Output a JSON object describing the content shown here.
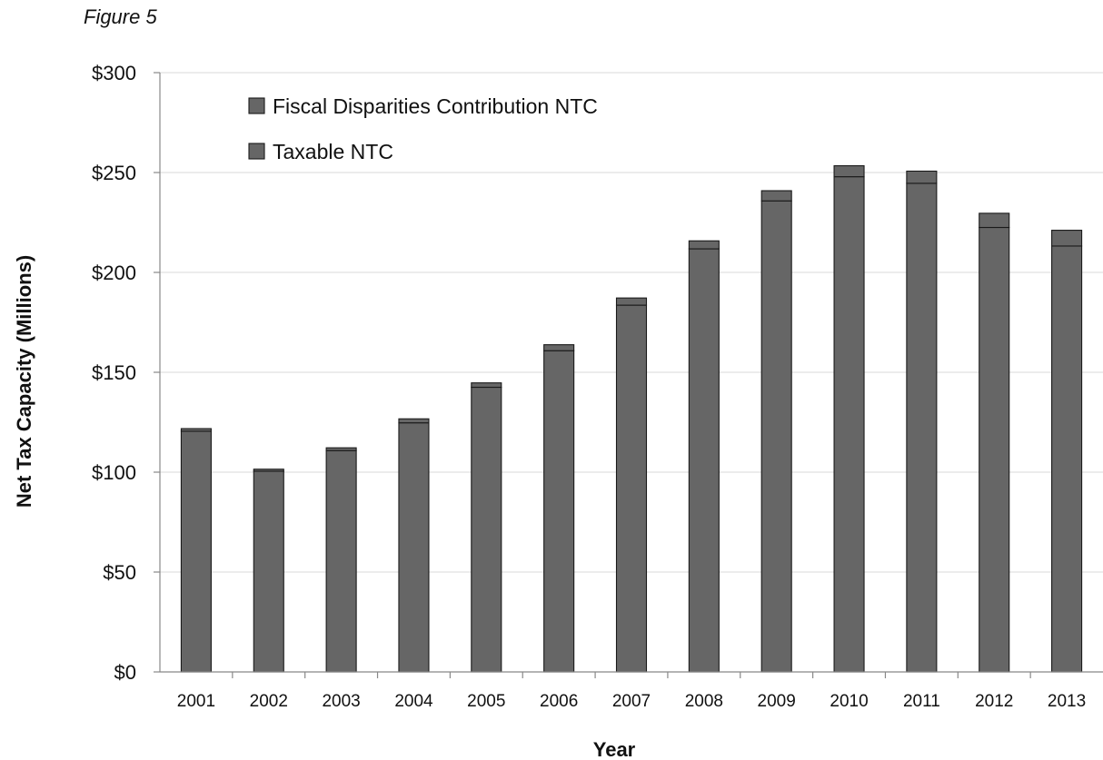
{
  "figure_label": "Figure 5",
  "chart_data": {
    "type": "bar",
    "stacked": true,
    "title": "",
    "xlabel": "Year",
    "ylabel": "Net Tax Capacity (Millions)",
    "ylim": [
      0,
      300
    ],
    "yticks": [
      "$0",
      "$50",
      "$100",
      "$150",
      "$200",
      "$250",
      "$300"
    ],
    "ytick_values": [
      0,
      50,
      100,
      150,
      200,
      250,
      300
    ],
    "grid": true,
    "legend_position": "top-left",
    "categories": [
      "2001",
      "2002",
      "2003",
      "2004",
      "2005",
      "2006",
      "2007",
      "2008",
      "2009",
      "2010",
      "2011",
      "2012",
      "2013"
    ],
    "series": [
      {
        "name": "Taxable NTC",
        "color": "#666666",
        "values": [
          120.5,
          100.5,
          110.8,
          124.7,
          142.5,
          160.8,
          183.6,
          211.8,
          235.8,
          247.9,
          244.6,
          222.5,
          213.2
        ]
      },
      {
        "name": "Fiscal Disparities Contribution NTC",
        "color": "#666666",
        "values": [
          1.3,
          1.0,
          1.4,
          2.0,
          2.2,
          3.0,
          3.6,
          4.0,
          5.1,
          5.5,
          6.1,
          7.1,
          7.9
        ]
      }
    ]
  }
}
